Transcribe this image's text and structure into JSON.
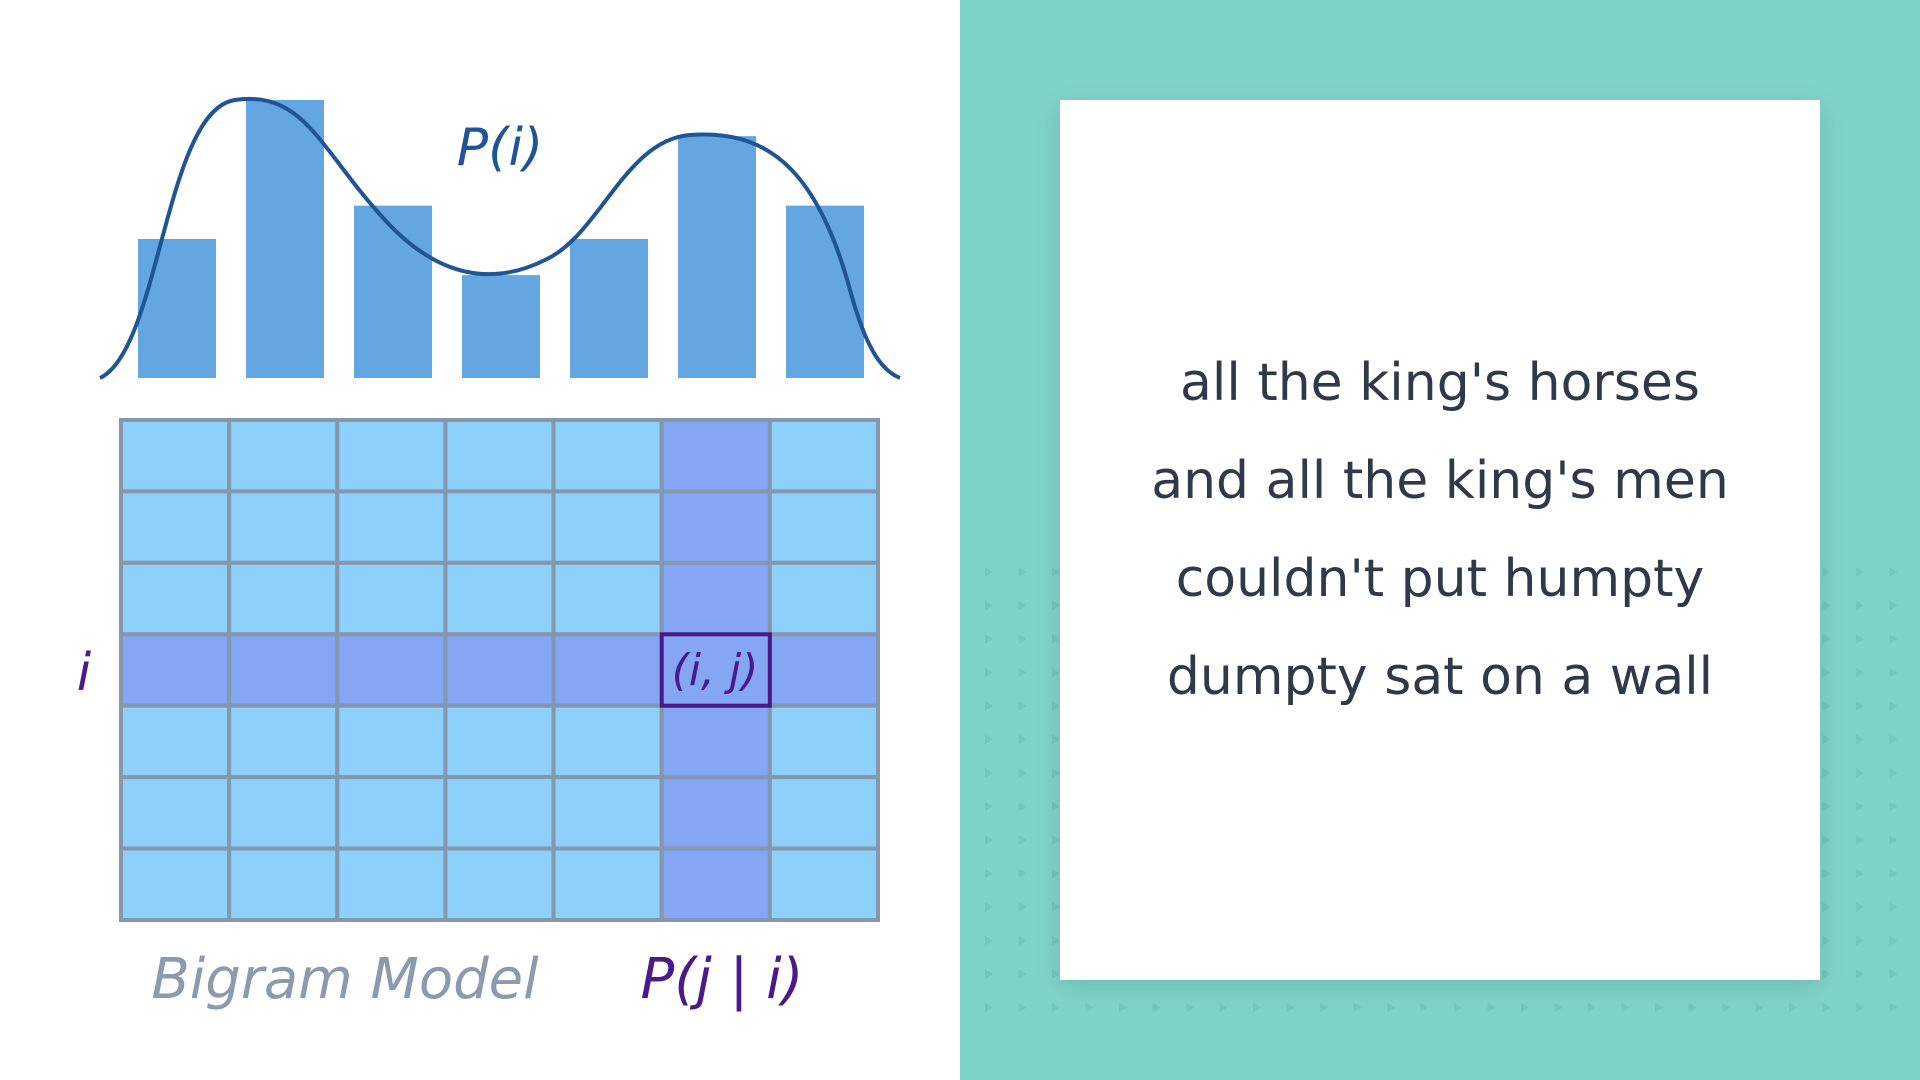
{
  "diagram": {
    "dist_label": "P(i)",
    "row_label": "i",
    "cell_label": "(i, j)",
    "model_caption": "Bigram Model",
    "conditional_label": "P(j | i)",
    "bars": [
      0.5,
      1.0,
      0.62,
      0.37,
      0.5,
      0.87,
      0.62
    ],
    "grid": {
      "rows": 7,
      "cols": 7,
      "highlight_row": 4,
      "highlight_col": 6
    }
  },
  "colors": {
    "bar": "#63a6e1",
    "curve": "#1f5496",
    "cell": "#8dd0fa",
    "cell_highlight": "#85a6f4",
    "grid_line": "#8497ad",
    "accent_purple": "#4a1a8c",
    "caption_gray": "#8a9bb0",
    "teal": "#7fd4c8",
    "quote_text": "#2e3a4a"
  },
  "quote": {
    "lines": [
      "all the king's horses",
      "and all the king's men",
      "couldn't put humpty",
      "dumpty sat on a wall"
    ]
  }
}
